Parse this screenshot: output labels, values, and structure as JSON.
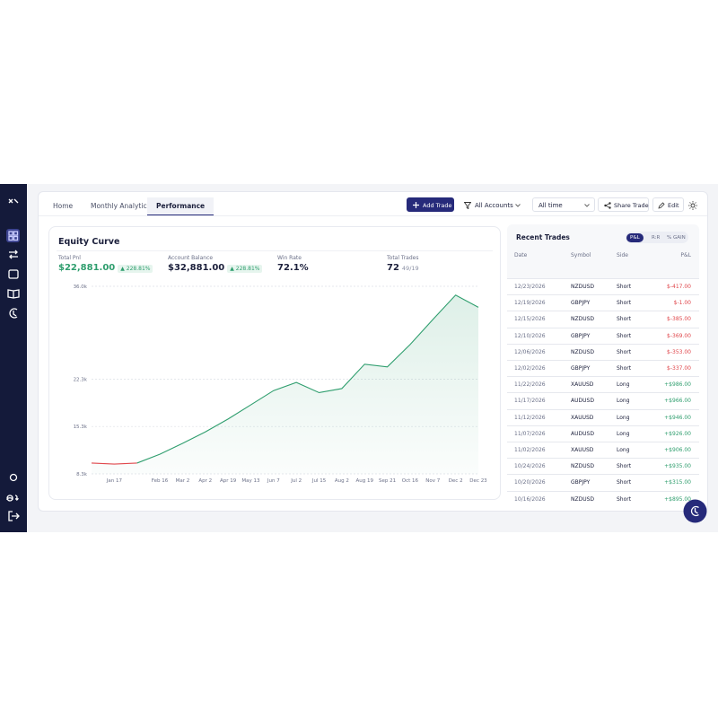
{
  "nav": {
    "tabs": [
      "Home",
      "Monthly Analytics",
      "Performance"
    ],
    "active_tab": 2
  },
  "toolbar": {
    "add_trade": "Add Trade",
    "accounts": "All Accounts",
    "period": "All time",
    "share": "Share Trade",
    "edit": "Edit"
  },
  "stats": [
    {
      "label": "Total Pnl",
      "value": "$22,881.00",
      "change": "▲ 228.81%"
    },
    {
      "label": "Account Balance",
      "value": "$32,881.00",
      "change": "▲ 228.81%"
    },
    {
      "label": "Win Rate",
      "value": "72.1%"
    },
    {
      "label": "Total Trades",
      "value": "72",
      "detail": "49/19"
    }
  ],
  "chart_data": {
    "type": "line",
    "title": "Equity Curve",
    "categories": [
      null,
      "Jan 17",
      null,
      "Feb 16",
      "Mar 2",
      "Apr 2",
      "Apr 19",
      "May 13",
      "Jun 7",
      "Jul 2",
      "Jul 15",
      "Aug 2",
      "Aug 19",
      "Sep 21",
      "Oct 16",
      "Nov 7",
      "Dec 2",
      "Dec 23"
    ],
    "series": [
      {
        "color": "#2f9e6e",
        "negative_color": "#e0474c",
        "values": [
          9900,
          9750,
          9900,
          11200,
          12800,
          14500,
          16400,
          18500,
          20600,
          21800,
          20300,
          20900,
          24500,
          24100,
          27400,
          31100,
          34700,
          32900
        ]
      }
    ],
    "ylim": [
      8300,
      36000
    ],
    "yticks": [
      {
        "value": 8300,
        "label": "8.3k"
      },
      {
        "value": 15300,
        "label": "15.3k"
      },
      {
        "value": 22300,
        "label": "22.3k"
      },
      {
        "value": 36000,
        "label": "36.0k"
      }
    ],
    "grid": true
  },
  "recent_trades": {
    "title": "Recent Trades",
    "toggles": [
      "P&L",
      "R:R",
      "% GAIN"
    ],
    "active_toggle": 0,
    "columns": [
      "Date",
      "Symbol",
      "Side",
      "P&L"
    ],
    "rows": [
      [
        "12/23/2026",
        "NZDUSD",
        "Short",
        "$-417.00"
      ],
      [
        "12/19/2026",
        "GBPJPY",
        "Short",
        "$-1.00"
      ],
      [
        "12/15/2026",
        "NZDUSD",
        "Short",
        "$-385.00"
      ],
      [
        "12/10/2026",
        "GBPJPY",
        "Short",
        "$-369.00"
      ],
      [
        "12/06/2026",
        "NZDUSD",
        "Short",
        "$-353.00"
      ],
      [
        "12/02/2026",
        "GBPJPY",
        "Short",
        "$-337.00"
      ],
      [
        "11/22/2026",
        "XAUUSD",
        "Long",
        "+$986.00"
      ],
      [
        "11/17/2026",
        "AUDUSD",
        "Long",
        "+$966.00"
      ],
      [
        "11/12/2026",
        "XAUUSD",
        "Long",
        "+$946.00"
      ],
      [
        "11/07/2026",
        "AUDUSD",
        "Long",
        "+$926.00"
      ],
      [
        "11/02/2026",
        "XAUUSD",
        "Long",
        "+$906.00"
      ],
      [
        "10/24/2026",
        "NZDUSD",
        "Short",
        "+$935.00"
      ],
      [
        "10/20/2026",
        "GBPJPY",
        "Short",
        "+$315.00"
      ],
      [
        "10/16/2026",
        "NZDUSD",
        "Short",
        "+$895.00"
      ]
    ]
  }
}
